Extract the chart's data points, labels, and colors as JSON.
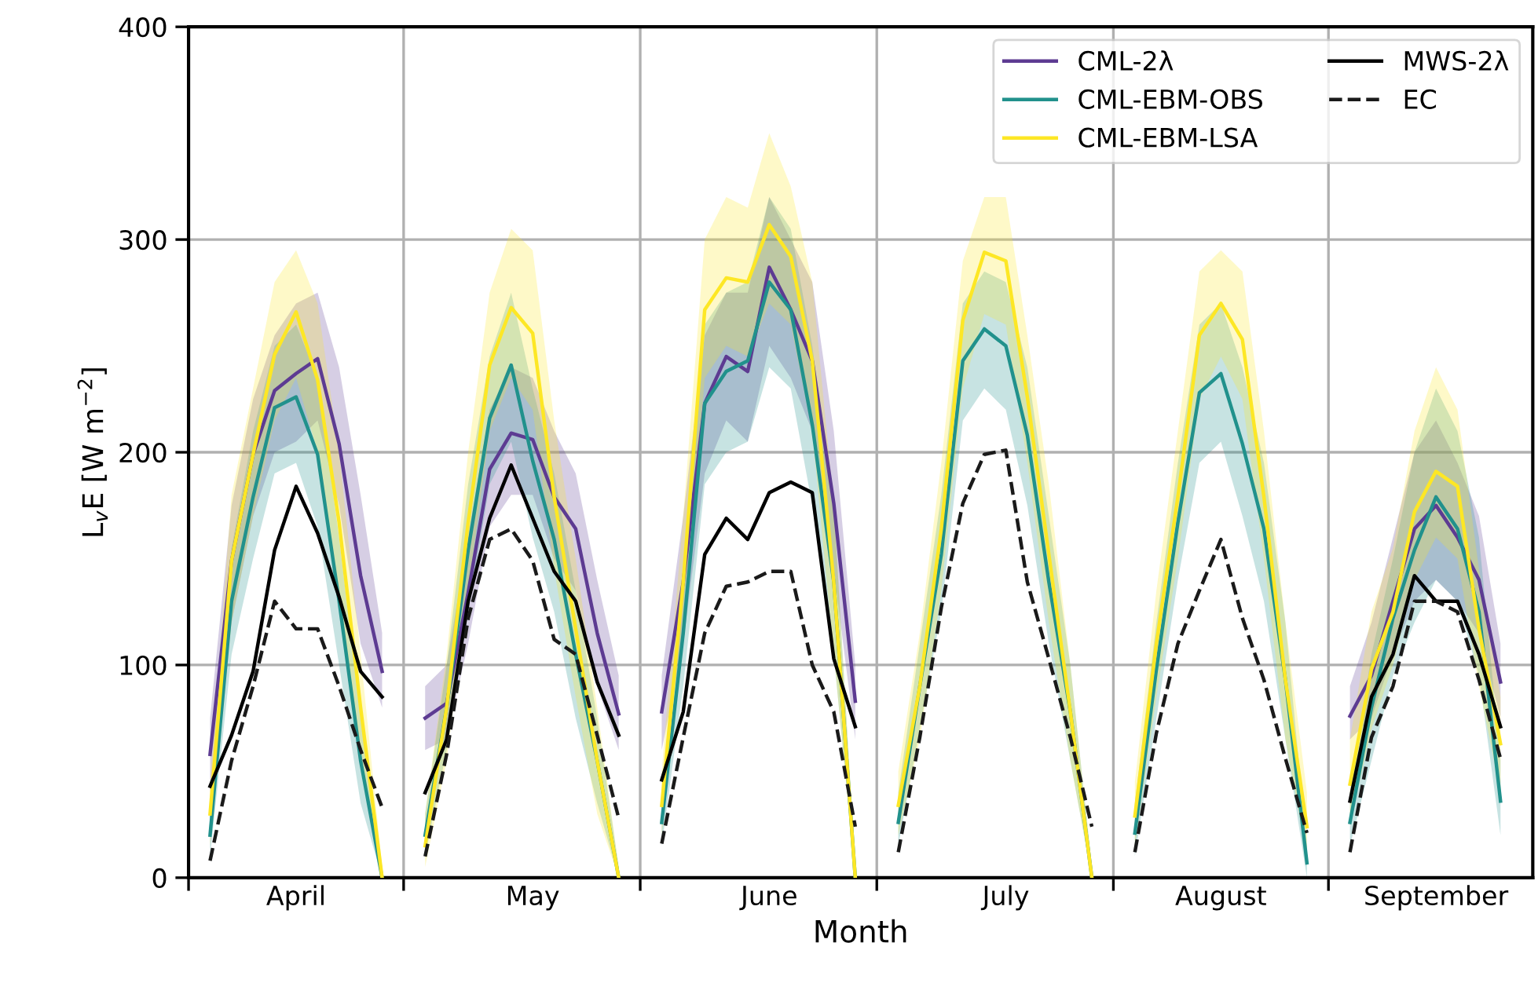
{
  "chart_data": {
    "type": "line",
    "xlabel": "Month",
    "ylabel": "L$_{v}$E [W m$^{−2}$]",
    "categories": [
      null,
      null,
      null,
      null,
      null,
      "April",
      null,
      null,
      null,
      null,
      null,
      null,
      null,
      null,
      null,
      null,
      "May",
      null,
      null,
      null,
      null,
      null,
      null,
      null,
      null,
      null,
      null,
      "June",
      null,
      null,
      null,
      null,
      null,
      null,
      null,
      null,
      null,
      null,
      "July",
      null,
      null,
      null,
      null,
      null,
      null,
      null,
      null,
      null,
      "August",
      null,
      null,
      null,
      null,
      null,
      null,
      null,
      null,
      null,
      "September",
      null,
      null,
      null
    ],
    "ylim": [
      0,
      400
    ],
    "yticks": [
      0,
      100,
      200,
      300,
      400
    ],
    "grid": true,
    "legend": "top right",
    "series": [
      {
        "name": "CML-2λ",
        "color": "#5d3b92",
        "line_style": "solid",
        "values": [
          null,
          58,
          149,
          199,
          229,
          237,
          244,
          204,
          142,
          97,
          null,
          75,
          82,
          134,
          192,
          209,
          206,
          179,
          164,
          115,
          77,
          null,
          78,
          139,
          223,
          245,
          238,
          287,
          267,
          243,
          176,
          83,
          null,
          null,
          null,
          null,
          null,
          null,
          null,
          null,
          null,
          null,
          null,
          null,
          null,
          null,
          null,
          null,
          null,
          null,
          null,
          null,
          null,
          null,
          76,
          95,
          130,
          164,
          175,
          160,
          140,
          92
        ],
        "lower": [
          null,
          40,
          120,
          170,
          200,
          205,
          215,
          175,
          110,
          80,
          null,
          60,
          65,
          110,
          165,
          180,
          180,
          150,
          135,
          90,
          60,
          null,
          60,
          110,
          190,
          215,
          205,
          250,
          235,
          210,
          145,
          65,
          null,
          null,
          null,
          null,
          null,
          null,
          null,
          null,
          null,
          null,
          null,
          null,
          null,
          null,
          null,
          null,
          null,
          null,
          null,
          null,
          null,
          null,
          65,
          75,
          105,
          130,
          140,
          130,
          115,
          75
        ],
        "upper": [
          null,
          75,
          175,
          225,
          255,
          270,
          275,
          240,
          180,
          115,
          null,
          90,
          100,
          160,
          220,
          240,
          235,
          210,
          190,
          140,
          95,
          null,
          95,
          170,
          255,
          275,
          275,
          320,
          300,
          280,
          210,
          100,
          null,
          null,
          null,
          null,
          null,
          null,
          null,
          null,
          null,
          null,
          null,
          null,
          null,
          null,
          null,
          null,
          null,
          null,
          null,
          null,
          null,
          null,
          90,
          120,
          160,
          200,
          215,
          195,
          170,
          110
        ]
      },
      {
        "name": "CML-EBM-OBS",
        "color": "#21918c",
        "line_style": "solid",
        "values": [
          null,
          20,
          130,
          179,
          221,
          226,
          199,
          130,
          55,
          0,
          null,
          20,
          80,
          154,
          216,
          241,
          196,
          159,
          105,
          55,
          0,
          null,
          26,
          115,
          223,
          238,
          243,
          280,
          267,
          213,
          139,
          0,
          null,
          26,
          90,
          152,
          243,
          258,
          250,
          208,
          139,
          78,
          0,
          null,
          21,
          98,
          167,
          228,
          237,
          204,
          164,
          93,
          7,
          null,
          26,
          80,
          122,
          154,
          179,
          164,
          125,
          36
        ],
        "lower": [
          null,
          10,
          105,
          150,
          190,
          195,
          165,
          100,
          35,
          0,
          null,
          10,
          60,
          125,
          185,
          205,
          160,
          125,
          75,
          35,
          0,
          null,
          15,
          90,
          185,
          200,
          205,
          240,
          230,
          175,
          105,
          0,
          null,
          15,
          70,
          125,
          215,
          230,
          220,
          175,
          110,
          55,
          0,
          null,
          10,
          75,
          140,
          195,
          205,
          170,
          130,
          65,
          0,
          null,
          15,
          55,
          95,
          120,
          140,
          130,
          95,
          20
        ],
        "upper": [
          null,
          30,
          155,
          210,
          250,
          260,
          235,
          160,
          75,
          5,
          null,
          30,
          100,
          185,
          245,
          275,
          230,
          190,
          135,
          75,
          5,
          null,
          40,
          145,
          260,
          275,
          280,
          320,
          305,
          250,
          175,
          5,
          null,
          40,
          110,
          180,
          270,
          285,
          280,
          240,
          170,
          100,
          5,
          null,
          35,
          120,
          195,
          260,
          270,
          240,
          195,
          120,
          15,
          null,
          40,
          105,
          150,
          200,
          230,
          210,
          160,
          55
        ]
      },
      {
        "name": "CML-EBM-LSA",
        "color": "#fde725",
        "line_style": "solid",
        "values": [
          null,
          30,
          149,
          199,
          246,
          266,
          234,
          167,
          80,
          0,
          null,
          15,
          80,
          167,
          241,
          268,
          256,
          179,
          117,
          55,
          0,
          null,
          34,
          139,
          267,
          282,
          280,
          307,
          292,
          243,
          139,
          0,
          null,
          34,
          90,
          164,
          262,
          294,
          290,
          226,
          152,
          78,
          0,
          null,
          29,
          110,
          179,
          255,
          270,
          253,
          179,
          93,
          24,
          null,
          44,
          98,
          125,
          172,
          191,
          184,
          117,
          63
        ],
        "lower": [
          null,
          15,
          120,
          170,
          215,
          235,
          200,
          135,
          55,
          0,
          null,
          5,
          55,
          135,
          210,
          235,
          220,
          145,
          85,
          30,
          0,
          null,
          20,
          110,
          235,
          250,
          245,
          270,
          260,
          210,
          105,
          0,
          null,
          20,
          65,
          135,
          230,
          265,
          260,
          195,
          120,
          55,
          0,
          null,
          15,
          85,
          150,
          225,
          245,
          225,
          150,
          65,
          10,
          null,
          25,
          70,
          100,
          140,
          160,
          150,
          90,
          40
        ],
        "upper": [
          null,
          45,
          180,
          230,
          280,
          295,
          270,
          200,
          105,
          5,
          null,
          30,
          105,
          200,
          275,
          305,
          295,
          215,
          150,
          80,
          5,
          null,
          50,
          170,
          300,
          320,
          315,
          350,
          325,
          280,
          175,
          5,
          null,
          50,
          115,
          195,
          290,
          320,
          320,
          255,
          185,
          100,
          5,
          null,
          45,
          135,
          210,
          285,
          295,
          285,
          210,
          120,
          40,
          null,
          65,
          125,
          155,
          210,
          240,
          220,
          145,
          85
        ]
      },
      {
        "name": "MWS-2λ",
        "color": "#000000",
        "line_style": "solid",
        "values": [
          null,
          43,
          67,
          97,
          154,
          184,
          162,
          132,
          97,
          85,
          null,
          40,
          65,
          130,
          169,
          194,
          169,
          144,
          130,
          92,
          67,
          null,
          46,
          78,
          152,
          169,
          159,
          181,
          186,
          181,
          103,
          71,
          null,
          null,
          null,
          null,
          null,
          null,
          null,
          null,
          null,
          null,
          null,
          null,
          null,
          null,
          null,
          null,
          null,
          null,
          null,
          null,
          null,
          null,
          36,
          85,
          105,
          142,
          130,
          130,
          105,
          71
        ]
      },
      {
        "name": "EC",
        "color": "#1a1a1a",
        "line_style": "dashed",
        "values": [
          null,
          8,
          55,
          90,
          130,
          117,
          117,
          90,
          60,
          33,
          null,
          10,
          58,
          122,
          159,
          164,
          149,
          112,
          105,
          67,
          28,
          null,
          16,
          66,
          115,
          137,
          139,
          144,
          144,
          100,
          78,
          24,
          null,
          12,
          66,
          127,
          176,
          199,
          201,
          139,
          103,
          66,
          24,
          null,
          12,
          68,
          110,
          135,
          159,
          122,
          93,
          56,
          21,
          null,
          12,
          66,
          90,
          130,
          130,
          125,
          93,
          56
        ]
      }
    ]
  }
}
